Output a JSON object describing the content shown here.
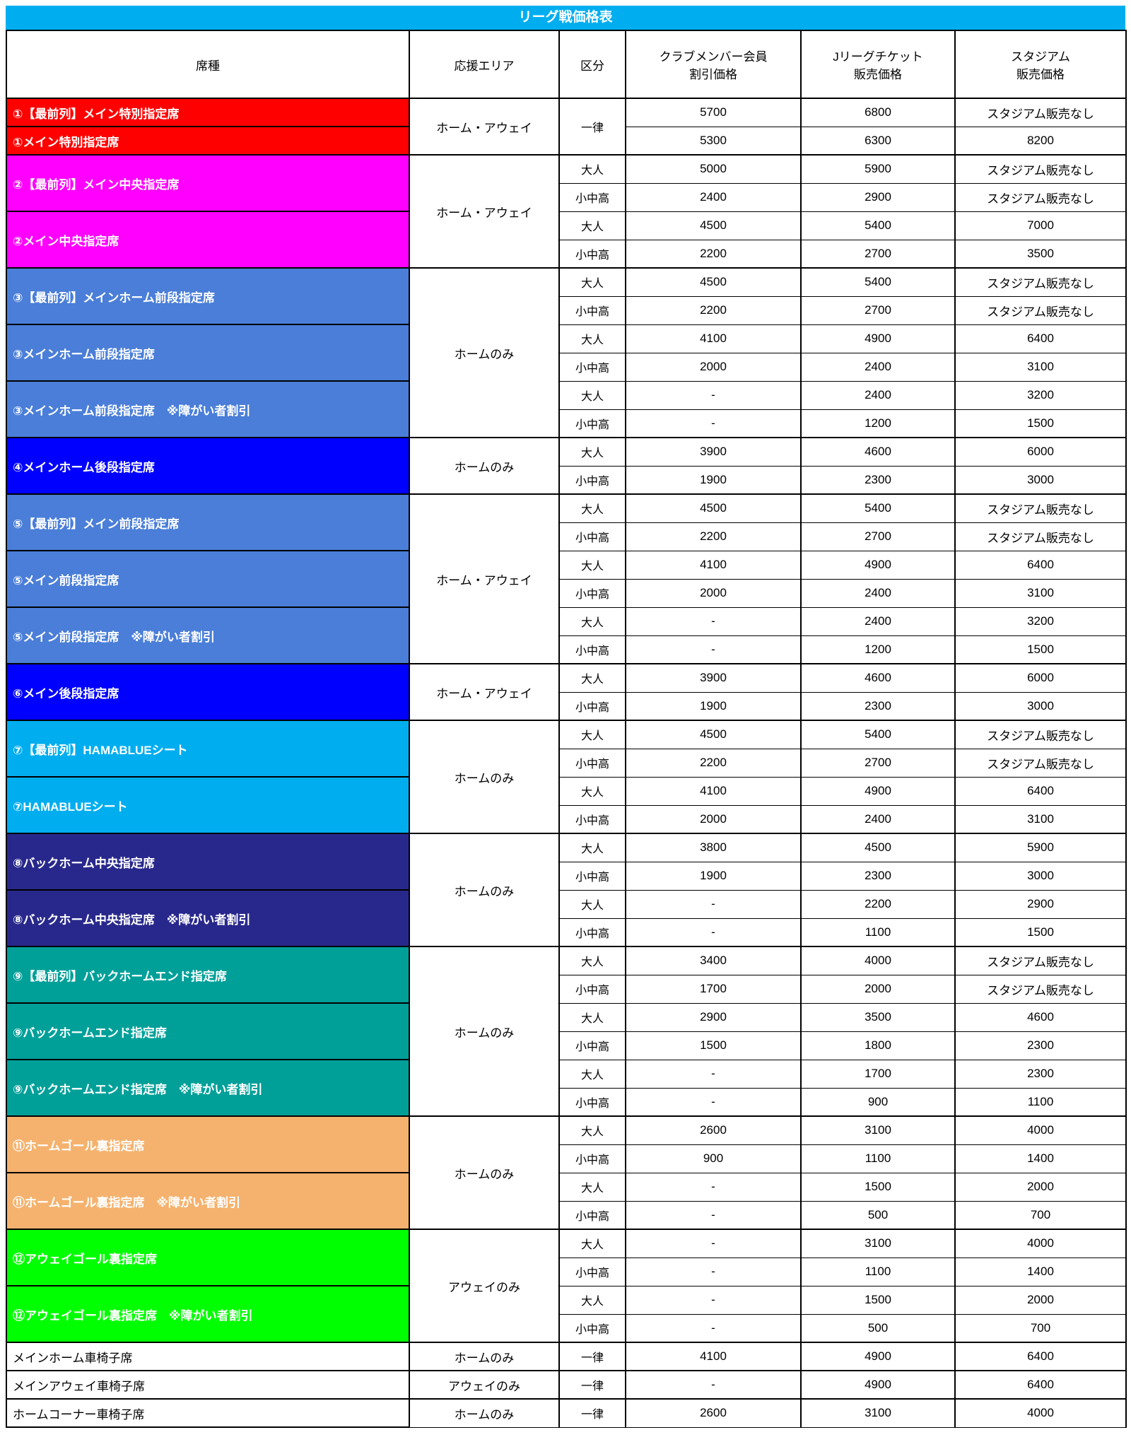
{
  "title": "リーグ戦価格表",
  "colors": {
    "title_bg": "#00AEEF",
    "red": "#FF0000",
    "magenta": "#FF00FF",
    "cornflower": "#4A7ED8",
    "blue": "#0000FF",
    "cyan": "#00AEEF",
    "navy": "#28288C",
    "teal": "#00A099",
    "orange": "#F5B26E",
    "green": "#00FF00",
    "row_text_on_color": "#FFFFFF",
    "border": "#000000"
  },
  "columns": {
    "seat": "席種",
    "area": "応援エリア",
    "kubun": "区分",
    "member": "クラブメンバー会員\n割引価格",
    "jleague": "Jリーグチケット\n販売価格",
    "stadium": "スタジアム\n販売価格"
  },
  "no_sale_label": "スタジアム販売なし",
  "blocks": [
    {
      "area": "ホーム・アウェイ",
      "shared_kubun": "一律",
      "seats": [
        {
          "name": "①【最前列】メイン特別指定席",
          "color": "red",
          "rows": [
            [
              "5700",
              "6800",
              "スタジアム販売なし"
            ]
          ]
        },
        {
          "name": "①メイン特別指定席",
          "color": "red",
          "rows": [
            [
              "5300",
              "6300",
              "8200"
            ]
          ]
        }
      ]
    },
    {
      "area": "ホーム・アウェイ",
      "seats": [
        {
          "name": "②【最前列】メイン中央指定席",
          "color": "magenta",
          "kubun": [
            "大人",
            "小中高"
          ],
          "rows": [
            [
              "5000",
              "5900",
              "スタジアム販売なし"
            ],
            [
              "2400",
              "2900",
              "スタジアム販売なし"
            ]
          ]
        },
        {
          "name": "②メイン中央指定席",
          "color": "magenta",
          "kubun": [
            "大人",
            "小中高"
          ],
          "rows": [
            [
              "4500",
              "5400",
              "7000"
            ],
            [
              "2200",
              "2700",
              "3500"
            ]
          ]
        }
      ]
    },
    {
      "area": "ホームのみ",
      "seats": [
        {
          "name": "③【最前列】メインホーム前段指定席",
          "color": "cornflower",
          "kubun": [
            "大人",
            "小中高"
          ],
          "rows": [
            [
              "4500",
              "5400",
              "スタジアム販売なし"
            ],
            [
              "2200",
              "2700",
              "スタジアム販売なし"
            ]
          ]
        },
        {
          "name": "③メインホーム前段指定席",
          "color": "cornflower",
          "kubun": [
            "大人",
            "小中高"
          ],
          "rows": [
            [
              "4100",
              "4900",
              "6400"
            ],
            [
              "2000",
              "2400",
              "3100"
            ]
          ]
        },
        {
          "name": "③メインホーム前段指定席　※障がい者割引",
          "color": "cornflower",
          "kubun": [
            "大人",
            "小中高"
          ],
          "rows": [
            [
              "-",
              "2400",
              "3200"
            ],
            [
              "-",
              "1200",
              "1500"
            ]
          ]
        }
      ]
    },
    {
      "area": "ホームのみ",
      "seats": [
        {
          "name": "④メインホーム後段指定席",
          "color": "blue",
          "kubun": [
            "大人",
            "小中高"
          ],
          "rows": [
            [
              "3900",
              "4600",
              "6000"
            ],
            [
              "1900",
              "2300",
              "3000"
            ]
          ]
        }
      ]
    },
    {
      "area": "ホーム・アウェイ",
      "seats": [
        {
          "name": "⑤【最前列】メイン前段指定席",
          "color": "cornflower",
          "kubun": [
            "大人",
            "小中高"
          ],
          "rows": [
            [
              "4500",
              "5400",
              "スタジアム販売なし"
            ],
            [
              "2200",
              "2700",
              "スタジアム販売なし"
            ]
          ]
        },
        {
          "name": "⑤メイン前段指定席",
          "color": "cornflower",
          "kubun": [
            "大人",
            "小中高"
          ],
          "rows": [
            [
              "4100",
              "4900",
              "6400"
            ],
            [
              "2000",
              "2400",
              "3100"
            ]
          ]
        },
        {
          "name": "⑤メイン前段指定席　※障がい者割引",
          "color": "cornflower",
          "kubun": [
            "大人",
            "小中高"
          ],
          "rows": [
            [
              "-",
              "2400",
              "3200"
            ],
            [
              "-",
              "1200",
              "1500"
            ]
          ]
        }
      ]
    },
    {
      "area": "ホーム・アウェイ",
      "seats": [
        {
          "name": "⑥メイン後段指定席",
          "color": "blue",
          "kubun": [
            "大人",
            "小中高"
          ],
          "rows": [
            [
              "3900",
              "4600",
              "6000"
            ],
            [
              "1900",
              "2300",
              "3000"
            ]
          ]
        }
      ]
    },
    {
      "area": "ホームのみ",
      "seats": [
        {
          "name": "⑦【最前列】HAMABLUEシート",
          "color": "cyan",
          "kubun": [
            "大人",
            "小中高"
          ],
          "rows": [
            [
              "4500",
              "5400",
              "スタジアム販売なし"
            ],
            [
              "2200",
              "2700",
              "スタジアム販売なし"
            ]
          ]
        },
        {
          "name": "⑦HAMABLUEシート",
          "color": "cyan",
          "kubun": [
            "大人",
            "小中高"
          ],
          "rows": [
            [
              "4100",
              "4900",
              "6400"
            ],
            [
              "2000",
              "2400",
              "3100"
            ]
          ]
        }
      ]
    },
    {
      "area": "ホームのみ",
      "seats": [
        {
          "name": "⑧バックホーム中央指定席",
          "color": "navy",
          "kubun": [
            "大人",
            "小中高"
          ],
          "rows": [
            [
              "3800",
              "4500",
              "5900"
            ],
            [
              "1900",
              "2300",
              "3000"
            ]
          ]
        },
        {
          "name": "⑧バックホーム中央指定席　※障がい者割引",
          "color": "navy",
          "kubun": [
            "大人",
            "小中高"
          ],
          "rows": [
            [
              "-",
              "2200",
              "2900"
            ],
            [
              "-",
              "1100",
              "1500"
            ]
          ]
        }
      ]
    },
    {
      "area": "ホームのみ",
      "seats": [
        {
          "name": "⑨【最前列】バックホームエンド指定席",
          "color": "teal",
          "kubun": [
            "大人",
            "小中高"
          ],
          "rows": [
            [
              "3400",
              "4000",
              "スタジアム販売なし"
            ],
            [
              "1700",
              "2000",
              "スタジアム販売なし"
            ]
          ]
        },
        {
          "name": "⑨バックホームエンド指定席",
          "color": "teal",
          "kubun": [
            "大人",
            "小中高"
          ],
          "rows": [
            [
              "2900",
              "3500",
              "4600"
            ],
            [
              "1500",
              "1800",
              "2300"
            ]
          ]
        },
        {
          "name": "⑨バックホームエンド指定席　※障がい者割引",
          "color": "teal",
          "kubun": [
            "大人",
            "小中高"
          ],
          "rows": [
            [
              "-",
              "1700",
              "2300"
            ],
            [
              "-",
              "900",
              "1100"
            ]
          ]
        }
      ]
    },
    {
      "area": "ホームのみ",
      "seats": [
        {
          "name": "⑪ホームゴール裏指定席",
          "color": "orange",
          "kubun": [
            "大人",
            "小中高"
          ],
          "rows": [
            [
              "2600",
              "3100",
              "4000"
            ],
            [
              "900",
              "1100",
              "1400"
            ]
          ]
        },
        {
          "name": "⑪ホームゴール裏指定席　※障がい者割引",
          "color": "orange",
          "kubun": [
            "大人",
            "小中高"
          ],
          "rows": [
            [
              "-",
              "1500",
              "2000"
            ],
            [
              "-",
              "500",
              "700"
            ]
          ]
        }
      ]
    },
    {
      "area": "アウェイのみ",
      "seats": [
        {
          "name": "⑫アウェイゴール裏指定席",
          "color": "green",
          "kubun": [
            "大人",
            "小中高"
          ],
          "rows": [
            [
              "-",
              "3100",
              "4000"
            ],
            [
              "-",
              "1100",
              "1400"
            ]
          ]
        },
        {
          "name": "⑫アウェイゴール裏指定席　※障がい者割引",
          "color": "green",
          "kubun": [
            "大人",
            "小中高"
          ],
          "rows": [
            [
              "-",
              "1500",
              "2000"
            ],
            [
              "-",
              "500",
              "700"
            ]
          ]
        }
      ]
    },
    {
      "area": "ホームのみ",
      "shared_kubun": "一律",
      "seats": [
        {
          "name": "メインホーム車椅子席",
          "color": "plain",
          "rows": [
            [
              "4100",
              "4900",
              "6400"
            ]
          ]
        }
      ]
    },
    {
      "area": "アウェイのみ",
      "shared_kubun": "一律",
      "seats": [
        {
          "name": "メインアウェイ車椅子席",
          "color": "plain",
          "rows": [
            [
              "-",
              "4900",
              "6400"
            ]
          ]
        }
      ]
    },
    {
      "area": "ホームのみ",
      "shared_kubun": "一律",
      "seats": [
        {
          "name": "ホームコーナー車椅子席",
          "color": "plain",
          "rows": [
            [
              "2600",
              "3100",
              "4000"
            ]
          ]
        }
      ]
    }
  ]
}
